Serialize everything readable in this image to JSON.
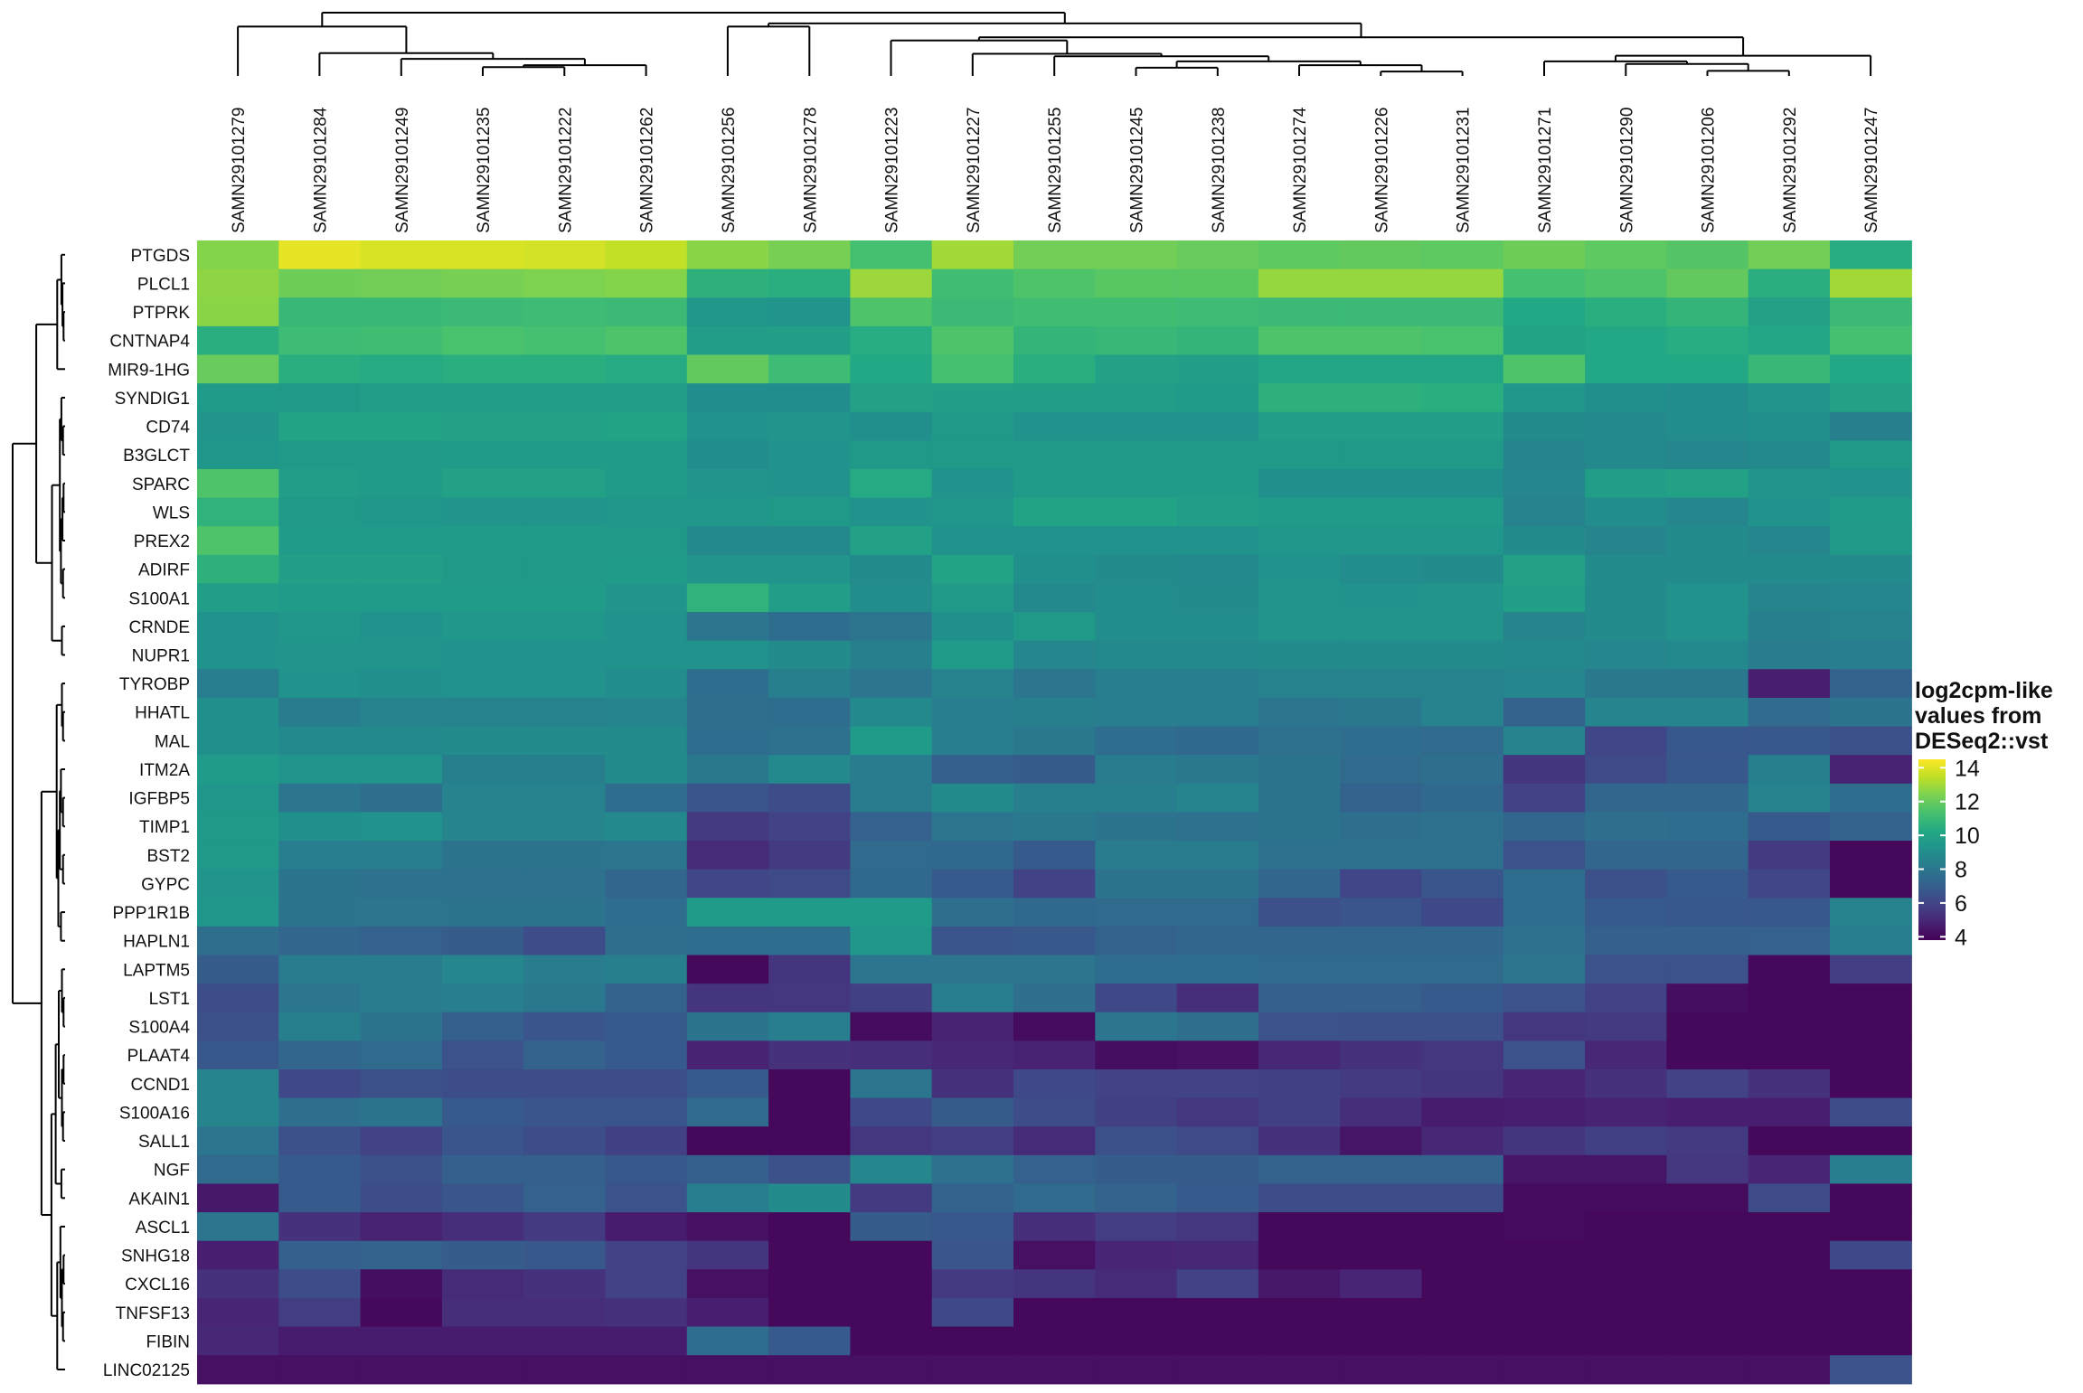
{
  "chart_data": {
    "type": "heatmap",
    "colormap": "viridis",
    "legend": {
      "title_lines": [
        "log2cpm-like",
        "values from",
        "DESeq2::vst"
      ],
      "ticks": [
        14,
        12,
        10,
        8,
        6,
        4
      ],
      "range": [
        3.8,
        14.5
      ],
      "placement": "right"
    },
    "columns": [
      "SAMN29101279",
      "SAMN29101284",
      "SAMN29101249",
      "SAMN29101235",
      "SAMN29101222",
      "SAMN29101262",
      "SAMN29101256",
      "SAMN29101278",
      "SAMN29101223",
      "SAMN29101227",
      "SAMN29101255",
      "SAMN29101245",
      "SAMN29101238",
      "SAMN29101274",
      "SAMN29101226",
      "SAMN29101231",
      "SAMN29101271",
      "SAMN29101290",
      "SAMN29101206",
      "SAMN29101292",
      "SAMN29101247"
    ],
    "rows": [
      "PTGDS",
      "PLCL1",
      "PTPRK",
      "CNTNAP4",
      "MIR9-1HG",
      "SYNDIG1",
      "CD74",
      "B3GLCT",
      "SPARC",
      "WLS",
      "PREX2",
      "ADIRF",
      "S100A1",
      "CRNDE",
      "NUPR1",
      "TYROBP",
      "HHATL",
      "MAL",
      "ITM2A",
      "IGFBP5",
      "TIMP1",
      "BST2",
      "GYPC",
      "PPP1R1B",
      "HAPLN1",
      "LAPTM5",
      "LST1",
      "S100A4",
      "PLAAT4",
      "CCND1",
      "S100A16",
      "SALL1",
      "NGF",
      "AKAIN1",
      "ASCL1",
      "SNHG18",
      "CXCL16",
      "TNFSF13",
      "FIBIN",
      "LINC02125"
    ],
    "values": [
      [
        12.5,
        14.1,
        13.9,
        13.9,
        13.8,
        13.5,
        12.6,
        12.3,
        11.3,
        13.0,
        12.2,
        12.2,
        12.0,
        11.8,
        11.9,
        11.8,
        12.1,
        11.8,
        11.6,
        12.2,
        10.4
      ],
      [
        12.7,
        12.1,
        12.2,
        12.3,
        12.4,
        12.5,
        10.6,
        10.5,
        12.9,
        11.2,
        11.5,
        11.7,
        11.7,
        12.8,
        12.8,
        12.8,
        11.3,
        11.5,
        11.9,
        10.5,
        13.0
      ],
      [
        12.6,
        10.9,
        10.9,
        11.0,
        11.1,
        11.0,
        9.4,
        9.3,
        11.5,
        11.0,
        11.2,
        11.2,
        11.1,
        11.0,
        11.0,
        11.0,
        10.2,
        10.5,
        10.8,
        9.9,
        11.0
      ],
      [
        10.5,
        11.1,
        11.2,
        11.4,
        11.3,
        11.5,
        9.7,
        9.8,
        10.4,
        11.5,
        10.8,
        10.9,
        10.8,
        11.5,
        11.5,
        11.4,
        10.0,
        10.2,
        10.4,
        10.1,
        11.3
      ],
      [
        12.0,
        10.5,
        10.3,
        10.5,
        10.5,
        10.3,
        11.9,
        11.1,
        10.2,
        11.3,
        10.5,
        9.9,
        9.8,
        10.1,
        10.1,
        10.1,
        11.5,
        10.2,
        10.2,
        10.9,
        10.2
      ],
      [
        9.6,
        9.5,
        9.7,
        9.7,
        9.7,
        9.7,
        9.0,
        9.0,
        9.9,
        9.8,
        9.8,
        9.7,
        9.6,
        10.6,
        10.6,
        10.5,
        9.4,
        9.1,
        9.0,
        9.3,
        9.9
      ],
      [
        9.3,
        10.0,
        10.0,
        9.9,
        9.9,
        10.0,
        9.2,
        9.3,
        9.1,
        9.5,
        9.2,
        9.2,
        9.2,
        9.8,
        9.8,
        9.8,
        8.9,
        8.8,
        9.0,
        9.1,
        8.4
      ],
      [
        9.4,
        9.5,
        9.5,
        9.6,
        9.6,
        9.6,
        9.0,
        9.2,
        9.5,
        9.5,
        9.5,
        9.5,
        9.5,
        9.5,
        9.5,
        9.5,
        8.6,
        8.8,
        8.7,
        8.8,
        9.5
      ],
      [
        11.5,
        9.7,
        9.6,
        9.9,
        9.9,
        9.6,
        9.3,
        9.2,
        10.3,
        9.2,
        9.6,
        9.6,
        9.6,
        9.1,
        9.1,
        9.1,
        8.7,
        9.7,
        9.9,
        9.3,
        9.2
      ],
      [
        10.7,
        9.5,
        9.4,
        9.3,
        9.3,
        9.4,
        9.4,
        9.5,
        9.2,
        9.4,
        10.0,
        10.0,
        9.7,
        9.6,
        9.6,
        9.6,
        8.5,
        9.0,
        8.7,
        9.2,
        9.6
      ],
      [
        11.5,
        9.6,
        9.6,
        9.6,
        9.6,
        9.5,
        8.8,
        8.8,
        9.9,
        9.2,
        9.2,
        9.2,
        9.2,
        9.4,
        9.4,
        9.4,
        8.9,
        8.6,
        8.9,
        8.7,
        9.5
      ],
      [
        10.6,
        9.8,
        9.8,
        9.5,
        9.5,
        9.6,
        9.3,
        9.3,
        8.9,
        10.0,
        9.1,
        8.9,
        8.8,
        9.2,
        9.0,
        8.9,
        9.9,
        8.9,
        8.9,
        8.9,
        8.9
      ],
      [
        9.7,
        9.6,
        9.6,
        9.6,
        9.6,
        9.3,
        10.7,
        9.7,
        9.0,
        9.5,
        8.8,
        9.0,
        8.9,
        9.3,
        9.2,
        9.3,
        9.8,
        8.9,
        9.2,
        8.6,
        8.7
      ],
      [
        9.2,
        9.4,
        9.2,
        9.4,
        9.4,
        9.2,
        8.0,
        7.6,
        8.0,
        9.1,
        9.5,
        9.0,
        9.0,
        9.3,
        9.3,
        9.3,
        8.6,
        8.9,
        9.2,
        8.4,
        8.5
      ],
      [
        9.2,
        9.3,
        9.3,
        9.2,
        9.2,
        9.2,
        9.2,
        8.9,
        8.4,
        9.6,
        8.7,
        8.8,
        8.8,
        8.9,
        8.9,
        8.9,
        8.8,
        8.7,
        8.8,
        8.2,
        8.3
      ],
      [
        8.3,
        9.2,
        9.1,
        9.2,
        9.2,
        9.0,
        7.6,
        8.4,
        8.0,
        8.5,
        8.0,
        8.3,
        8.3,
        8.5,
        8.5,
        8.5,
        8.7,
        8.1,
        8.1,
        4.7,
        7.2
      ],
      [
        9.1,
        8.2,
        8.5,
        8.5,
        8.5,
        8.6,
        7.7,
        7.6,
        8.8,
        8.3,
        8.4,
        8.3,
        8.3,
        8.0,
        8.1,
        8.5,
        7.2,
        8.6,
        8.6,
        7.5,
        7.9
      ],
      [
        9.1,
        8.8,
        8.8,
        8.9,
        8.9,
        8.9,
        7.6,
        7.8,
        9.6,
        8.3,
        8.1,
        7.6,
        7.4,
        7.8,
        7.6,
        7.5,
        8.5,
        6.0,
        6.7,
        6.7,
        6.4
      ],
      [
        9.6,
        9.3,
        9.3,
        8.4,
        8.4,
        8.9,
        8.1,
        8.8,
        8.2,
        7.0,
        6.9,
        8.2,
        8.1,
        7.9,
        7.5,
        7.7,
        5.4,
        6.2,
        6.7,
        8.4,
        4.8
      ],
      [
        9.4,
        8.0,
        7.7,
        8.5,
        8.5,
        7.6,
        6.6,
        6.3,
        8.2,
        8.9,
        8.4,
        8.4,
        8.6,
        7.9,
        7.2,
        7.4,
        5.9,
        7.3,
        7.3,
        8.5,
        7.6
      ],
      [
        9.5,
        9.1,
        9.2,
        8.6,
        8.6,
        8.8,
        5.6,
        5.9,
        7.1,
        8.0,
        8.1,
        7.9,
        7.8,
        7.9,
        7.7,
        7.8,
        7.3,
        7.7,
        7.6,
        6.8,
        7.2
      ],
      [
        9.5,
        8.3,
        8.3,
        7.9,
        7.9,
        8.0,
        5.1,
        5.6,
        7.5,
        7.4,
        6.8,
        8.2,
        8.2,
        7.8,
        7.8,
        7.8,
        6.5,
        7.3,
        7.3,
        5.6,
        4.0
      ],
      [
        9.3,
        7.9,
        7.8,
        7.8,
        7.8,
        7.3,
        6.0,
        6.2,
        7.4,
        6.8,
        5.9,
        7.9,
        7.9,
        7.3,
        6.0,
        6.6,
        7.6,
        6.4,
        6.8,
        6.0,
        4.0
      ],
      [
        9.4,
        7.9,
        8.0,
        7.9,
        7.9,
        7.6,
        9.6,
        9.6,
        9.6,
        7.7,
        7.4,
        7.5,
        7.5,
        6.4,
        6.6,
        6.1,
        7.6,
        6.8,
        6.7,
        6.7,
        8.5
      ],
      [
        7.7,
        7.3,
        7.1,
        6.9,
        6.3,
        7.7,
        7.6,
        7.6,
        9.4,
        6.6,
        6.7,
        7.2,
        7.3,
        7.3,
        7.3,
        7.3,
        7.8,
        7.0,
        7.0,
        7.1,
        8.3
      ],
      [
        6.9,
        8.2,
        8.2,
        8.7,
        8.2,
        8.4,
        4.0,
        5.4,
        8.0,
        8.0,
        8.0,
        7.6,
        7.6,
        7.5,
        7.5,
        7.5,
        8.0,
        6.5,
        6.5,
        4.0,
        5.7
      ],
      [
        6.3,
        8.0,
        8.2,
        8.3,
        8.1,
        7.2,
        5.4,
        5.5,
        5.8,
        8.3,
        7.7,
        6.1,
        5.2,
        7.0,
        7.0,
        6.8,
        6.5,
        5.9,
        4.2,
        4.0,
        4.0
      ],
      [
        6.4,
        8.4,
        7.9,
        7.0,
        6.6,
        6.8,
        7.9,
        8.3,
        4.1,
        4.8,
        4.1,
        8.0,
        7.7,
        6.5,
        6.4,
        6.4,
        5.5,
        5.6,
        4.0,
        4.0,
        4.0
      ],
      [
        6.7,
        7.3,
        7.5,
        6.5,
        7.2,
        6.8,
        4.8,
        5.3,
        5.2,
        5.0,
        4.8,
        4.2,
        4.3,
        5.0,
        5.3,
        5.5,
        6.5,
        5.0,
        4.0,
        4.0,
        4.0
      ],
      [
        8.6,
        6.1,
        6.4,
        6.3,
        6.3,
        6.3,
        6.8,
        4.0,
        8.0,
        5.3,
        6.1,
        5.9,
        5.9,
        5.8,
        5.6,
        5.4,
        4.9,
        5.3,
        5.9,
        5.3,
        4.0
      ],
      [
        8.6,
        7.7,
        7.9,
        6.8,
        6.6,
        6.6,
        7.5,
        4.0,
        6.1,
        6.9,
        6.3,
        5.8,
        5.5,
        5.8,
        5.2,
        4.6,
        4.7,
        4.8,
        4.7,
        4.7,
        6.3
      ],
      [
        8.0,
        6.4,
        5.9,
        6.6,
        6.3,
        5.8,
        4.0,
        4.0,
        5.5,
        5.7,
        5.1,
        6.4,
        6.2,
        5.3,
        4.4,
        5.0,
        5.4,
        5.8,
        5.6,
        4.0,
        4.0
      ],
      [
        7.5,
        6.8,
        6.4,
        7.0,
        7.0,
        6.7,
        7.0,
        6.4,
        8.7,
        7.8,
        7.1,
        6.9,
        6.9,
        7.2,
        7.2,
        7.2,
        4.4,
        4.4,
        5.5,
        4.9,
        8.3
      ],
      [
        4.5,
        6.8,
        6.3,
        6.6,
        7.1,
        6.5,
        8.3,
        8.9,
        5.6,
        7.2,
        7.5,
        7.2,
        6.8,
        6.3,
        6.3,
        6.3,
        4.1,
        4.1,
        4.1,
        6.2,
        4.0
      ],
      [
        8.0,
        5.3,
        4.8,
        5.2,
        5.6,
        4.6,
        4.3,
        4.0,
        6.9,
        6.7,
        5.2,
        5.7,
        5.5,
        4.0,
        4.0,
        4.0,
        4.1,
        4.0,
        4.0,
        4.0,
        4.0
      ],
      [
        4.7,
        7.0,
        7.2,
        6.9,
        6.7,
        5.9,
        5.4,
        4.0,
        4.0,
        6.6,
        4.3,
        4.9,
        5.0,
        4.0,
        4.0,
        4.0,
        4.0,
        4.0,
        4.0,
        4.0,
        6.1
      ],
      [
        5.3,
        6.3,
        4.2,
        5.1,
        5.3,
        5.9,
        4.3,
        4.0,
        4.0,
        5.6,
        5.4,
        5.1,
        5.9,
        4.5,
        4.9,
        4.0,
        4.0,
        4.0,
        4.0,
        4.0,
        4.0
      ],
      [
        4.9,
        5.7,
        4.0,
        5.2,
        5.2,
        5.3,
        4.7,
        4.0,
        4.0,
        6.1,
        4.0,
        4.0,
        4.0,
        4.0,
        4.0,
        4.0,
        4.0,
        4.0,
        4.0,
        4.0,
        4.0
      ],
      [
        5.0,
        4.6,
        4.6,
        4.6,
        4.6,
        4.6,
        7.6,
        6.8,
        4.0,
        4.0,
        4.0,
        4.0,
        4.0,
        4.0,
        4.0,
        4.0,
        4.0,
        4.0,
        4.0,
        4.0,
        4.0
      ],
      [
        4.3,
        4.3,
        4.3,
        4.3,
        4.3,
        4.3,
        4.3,
        4.3,
        4.3,
        4.3,
        4.3,
        4.3,
        4.3,
        4.3,
        4.3,
        4.3,
        4.3,
        4.3,
        4.3,
        4.3,
        6.5
      ]
    ],
    "column_dendrogram": {
      "merges": [
        [
          -4,
          -5
        ],
        [
          -6,
          1
        ],
        [
          -3,
          2
        ],
        [
          -2,
          3
        ],
        [
          -1,
          4
        ],
        [
          -7,
          -8
        ],
        [
          -15,
          -16
        ],
        [
          -14,
          7
        ],
        [
          -12,
          -13
        ],
        [
          9,
          8
        ],
        [
          -11,
          10
        ],
        [
          -10,
          11
        ],
        [
          -9,
          12
        ],
        [
          -19,
          -20
        ],
        [
          -18,
          14
        ],
        [
          -17,
          15
        ],
        [
          -21,
          16
        ],
        [
          13,
          17
        ],
        [
          6,
          18
        ],
        [
          5,
          19
        ]
      ],
      "heights": [
        0.14,
        0.17,
        0.27,
        0.36,
        0.78,
        0.78,
        0.07,
        0.17,
        0.13,
        0.23,
        0.31,
        0.35,
        0.56,
        0.08,
        0.19,
        0.23,
        0.32,
        0.61,
        0.83,
        1.0
      ]
    },
    "row_dendrogram": {
      "merges": [
        [
          -3,
          -4
        ],
        [
          -2,
          1
        ],
        [
          -1,
          2
        ],
        [
          -5,
          3
        ],
        [
          -7,
          -8
        ],
        [
          -6,
          5
        ],
        [
          -9,
          -10
        ],
        [
          -11,
          7
        ],
        [
          -12,
          -13
        ],
        [
          8,
          9
        ],
        [
          6,
          10
        ],
        [
          -14,
          -15
        ],
        [
          11,
          12
        ],
        [
          4,
          13
        ],
        [
          -17,
          -18
        ],
        [
          -16,
          15
        ],
        [
          -20,
          -21
        ],
        [
          -19,
          17
        ],
        [
          -22,
          -23
        ],
        [
          18,
          19
        ],
        [
          -24,
          -25
        ],
        [
          20,
          21
        ],
        [
          16,
          22
        ],
        [
          -27,
          -28
        ],
        [
          -26,
          24
        ],
        [
          -29,
          -30
        ],
        [
          -31,
          -32
        ],
        [
          26,
          27
        ],
        [
          25,
          28
        ],
        [
          -33,
          -34
        ],
        [
          29,
          30
        ],
        [
          -36,
          -37
        ],
        [
          -38,
          -39
        ],
        [
          32,
          33
        ],
        [
          -35,
          34
        ],
        [
          35,
          -40
        ],
        [
          31,
          36
        ],
        [
          23,
          37
        ],
        [
          14,
          38
        ]
      ],
      "heights": [
        0.03,
        0.05,
        0.07,
        0.15,
        0.04,
        0.07,
        0.03,
        0.05,
        0.04,
        0.08,
        0.1,
        0.06,
        0.25,
        0.55,
        0.04,
        0.06,
        0.04,
        0.08,
        0.04,
        0.1,
        0.08,
        0.13,
        0.16,
        0.03,
        0.06,
        0.03,
        0.04,
        0.06,
        0.12,
        0.07,
        0.18,
        0.03,
        0.04,
        0.06,
        0.09,
        0.15,
        0.26,
        0.45,
        1.0
      ]
    }
  }
}
